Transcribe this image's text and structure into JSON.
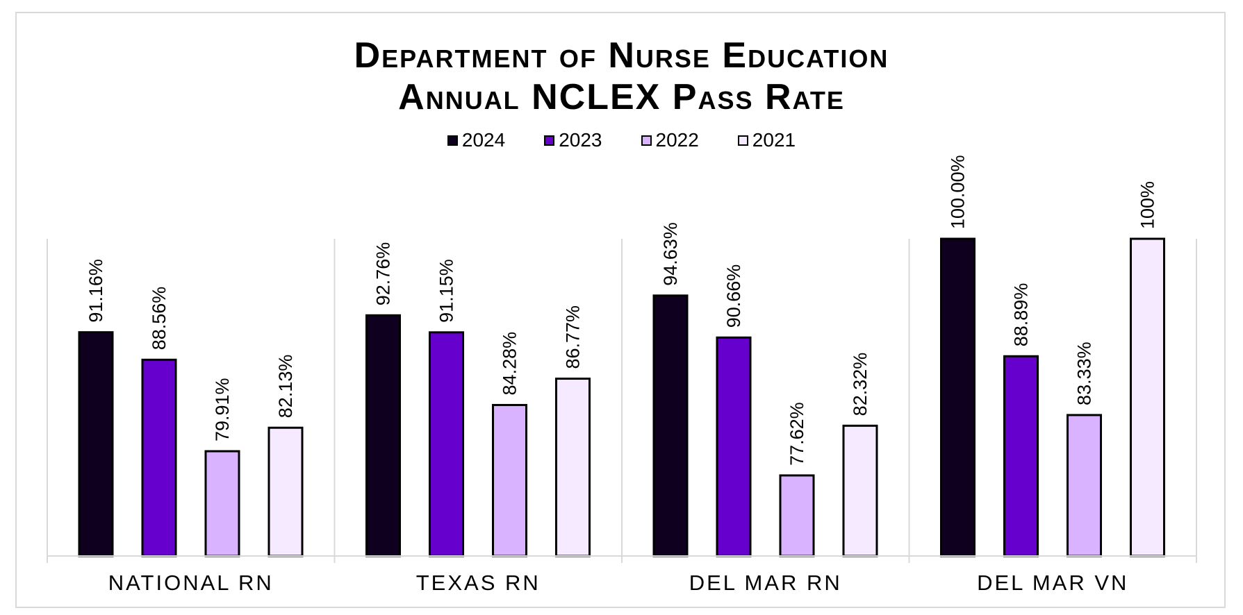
{
  "chart_data": {
    "type": "bar",
    "title": [
      "Department of Nurse Education",
      "Annual NCLEX Pass Rate"
    ],
    "categories": [
      "NATIONAL RN",
      "TEXAS RN",
      "DEL MAR RN",
      "DEL MAR VN"
    ],
    "series": [
      {
        "name": "2024",
        "color": "#10001f",
        "values": [
          91.16,
          92.76,
          94.63,
          100.0
        ],
        "labels": [
          "91.16%",
          "92.76%",
          "94.63%",
          "100.00%"
        ]
      },
      {
        "name": "2023",
        "color": "#6600cc",
        "values": [
          88.56,
          91.15,
          90.66,
          88.89
        ],
        "labels": [
          "88.56%",
          "91.15%",
          "90.66%",
          "88.89%"
        ]
      },
      {
        "name": "2022",
        "color": "#d9b3ff",
        "values": [
          79.91,
          84.28,
          77.62,
          83.33
        ],
        "labels": [
          "79.91%",
          "84.28%",
          "77.62%",
          "83.33%"
        ]
      },
      {
        "name": "2021",
        "color": "#f5eaff",
        "values": [
          82.13,
          86.77,
          82.32,
          100
        ],
        "labels": [
          "82.13%",
          "86.77%",
          "82.32%",
          "100%"
        ]
      }
    ],
    "ylim": [
      70,
      100
    ],
    "legend_position": "top",
    "xlabel": "",
    "ylabel": "",
    "grid": false
  }
}
